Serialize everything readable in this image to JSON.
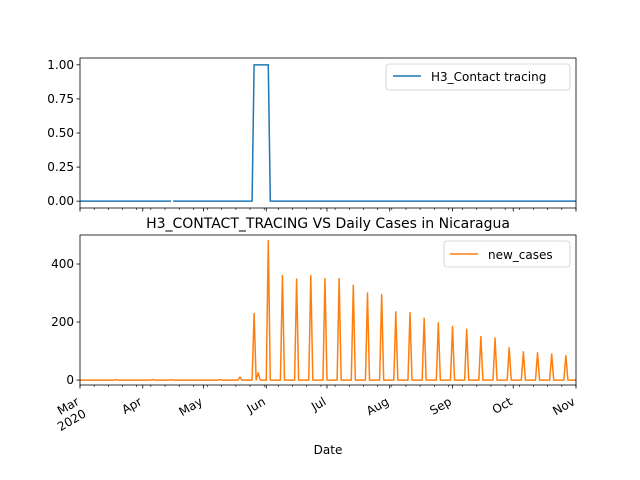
{
  "chart_data": [
    {
      "type": "line",
      "title": "",
      "xlabel": "",
      "ylabel": "",
      "xlim": [
        "2020-03-01",
        "2020-11-01"
      ],
      "ylim": [
        -0.05,
        1.05
      ],
      "yticks": [
        0.0,
        0.25,
        0.5,
        0.75,
        1.0
      ],
      "ytick_labels": [
        "0.00",
        "0.25",
        "0.50",
        "0.75",
        "1.00"
      ],
      "grid": false,
      "legend": "top-right",
      "series": [
        {
          "name": "H3_Contact tracing",
          "color": "#1f77b4",
          "segments": [
            [
              [
                "2020-03-01",
                0
              ],
              [
                "2020-04-15",
                0
              ]
            ],
            [
              [
                "2020-04-16",
                0
              ],
              [
                "2020-05-25",
                0
              ],
              [
                "2020-05-26",
                1
              ],
              [
                "2020-06-02",
                1
              ],
              [
                "2020-06-03",
                0
              ],
              [
                "2020-11-01",
                0
              ]
            ]
          ]
        }
      ]
    },
    {
      "type": "line",
      "title": "H3_CONTACT_TRACING VS Daily Cases in Nicaragua",
      "xlabel": "Date",
      "ylabel": "",
      "xlim": [
        "2020-03-01",
        "2020-11-01"
      ],
      "ylim": [
        -17,
        500
      ],
      "yticks": [
        0,
        200,
        400
      ],
      "ytick_labels": [
        "0",
        "200",
        "400"
      ],
      "x_major_ticks": [
        "2020-03-01",
        "2020-04-01",
        "2020-05-01",
        "2020-06-01",
        "2020-07-01",
        "2020-08-01",
        "2020-09-01",
        "2020-10-01",
        "2020-11-01"
      ],
      "x_tick_labels": [
        "Mar\n2020",
        "Apr",
        "May",
        "Jun",
        "Jul",
        "Aug",
        "Sep",
        "Oct",
        "Nov"
      ],
      "grid": false,
      "legend": "top-right",
      "series": [
        {
          "name": "new_cases",
          "color": "#ff7f0e",
          "points": [
            [
              "2020-03-01",
              0
            ],
            [
              "2020-03-18",
              0
            ],
            [
              "2020-03-19",
              1
            ],
            [
              "2020-03-20",
              0
            ],
            [
              "2020-04-05",
              0
            ],
            [
              "2020-04-06",
              2
            ],
            [
              "2020-04-07",
              0
            ],
            [
              "2020-04-14",
              0
            ],
            [
              "2020-04-15",
              1
            ],
            [
              "2020-04-16",
              0
            ],
            [
              "2020-05-08",
              0
            ],
            [
              "2020-05-09",
              2
            ],
            [
              "2020-05-10",
              0
            ],
            [
              "2020-05-18",
              0
            ],
            [
              "2020-05-19",
              10
            ],
            [
              "2020-05-20",
              0
            ],
            [
              "2020-05-25",
              0
            ],
            [
              "2020-05-26",
              230
            ],
            [
              "2020-05-27",
              0
            ],
            [
              "2020-05-28",
              25
            ],
            [
              "2020-05-29",
              0
            ],
            [
              "2020-06-01",
              0
            ],
            [
              "2020-06-02",
              480
            ],
            [
              "2020-06-03",
              0
            ],
            [
              "2020-06-08",
              0
            ],
            [
              "2020-06-09",
              360
            ],
            [
              "2020-06-10",
              0
            ],
            [
              "2020-06-15",
              0
            ],
            [
              "2020-06-16",
              348
            ],
            [
              "2020-06-17",
              0
            ],
            [
              "2020-06-22",
              0
            ],
            [
              "2020-06-23",
              360
            ],
            [
              "2020-06-24",
              0
            ],
            [
              "2020-06-29",
              0
            ],
            [
              "2020-06-30",
              350
            ],
            [
              "2020-07-01",
              0
            ],
            [
              "2020-07-06",
              0
            ],
            [
              "2020-07-07",
              350
            ],
            [
              "2020-07-08",
              0
            ],
            [
              "2020-07-13",
              0
            ],
            [
              "2020-07-14",
              327
            ],
            [
              "2020-07-15",
              0
            ],
            [
              "2020-07-20",
              0
            ],
            [
              "2020-07-21",
              300
            ],
            [
              "2020-07-22",
              0
            ],
            [
              "2020-07-27",
              0
            ],
            [
              "2020-07-28",
              295
            ],
            [
              "2020-07-29",
              0
            ],
            [
              "2020-08-03",
              0
            ],
            [
              "2020-08-04",
              235
            ],
            [
              "2020-08-05",
              0
            ],
            [
              "2020-08-10",
              0
            ],
            [
              "2020-08-11",
              232
            ],
            [
              "2020-08-12",
              0
            ],
            [
              "2020-08-17",
              0
            ],
            [
              "2020-08-18",
              213
            ],
            [
              "2020-08-19",
              0
            ],
            [
              "2020-08-24",
              0
            ],
            [
              "2020-08-25",
              197
            ],
            [
              "2020-08-26",
              0
            ],
            [
              "2020-08-31",
              0
            ],
            [
              "2020-09-01",
              185
            ],
            [
              "2020-09-02",
              0
            ],
            [
              "2020-09-07",
              0
            ],
            [
              "2020-09-08",
              175
            ],
            [
              "2020-09-09",
              0
            ],
            [
              "2020-09-14",
              0
            ],
            [
              "2020-09-15",
              150
            ],
            [
              "2020-09-16",
              0
            ],
            [
              "2020-09-21",
              0
            ],
            [
              "2020-09-22",
              145
            ],
            [
              "2020-09-23",
              0
            ],
            [
              "2020-09-28",
              0
            ],
            [
              "2020-09-29",
              112
            ],
            [
              "2020-09-30",
              0
            ],
            [
              "2020-10-05",
              0
            ],
            [
              "2020-10-06",
              97
            ],
            [
              "2020-10-07",
              0
            ],
            [
              "2020-10-12",
              0
            ],
            [
              "2020-10-13",
              94
            ],
            [
              "2020-10-14",
              0
            ],
            [
              "2020-10-19",
              0
            ],
            [
              "2020-10-20",
              90
            ],
            [
              "2020-10-21",
              0
            ],
            [
              "2020-10-26",
              0
            ],
            [
              "2020-10-27",
              84
            ],
            [
              "2020-10-28",
              0
            ],
            [
              "2020-11-01",
              0
            ]
          ]
        }
      ]
    }
  ]
}
